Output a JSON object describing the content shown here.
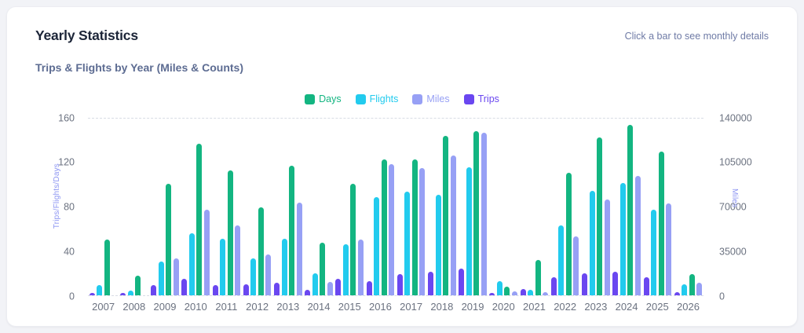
{
  "header": {
    "title": "Yearly Statistics",
    "hint": "Click a bar to see monthly details"
  },
  "chart_data": {
    "type": "bar",
    "title": "Trips & Flights by Year (Miles & Counts)",
    "categories": [
      "2007",
      "2008",
      "2009",
      "2010",
      "2011",
      "2012",
      "2013",
      "2014",
      "2015",
      "2016",
      "2017",
      "2018",
      "2019",
      "2020",
      "2021",
      "2022",
      "2023",
      "2024",
      "2025",
      "2026"
    ],
    "series": [
      {
        "name": "Days",
        "axis": "left",
        "color": "#13b581",
        "values": [
          50,
          18,
          100,
          136,
          112,
          79,
          116,
          47,
          100,
          122,
          122,
          143,
          147,
          8,
          32,
          110,
          142,
          153,
          129,
          19
        ]
      },
      {
        "name": "Flights",
        "axis": "left",
        "color": "#22cbee",
        "values": [
          9,
          4,
          30,
          56,
          51,
          33,
          51,
          20,
          46,
          88,
          93,
          90,
          115,
          13,
          5,
          63,
          94,
          101,
          77,
          10
        ]
      },
      {
        "name": "Miles",
        "axis": "right",
        "color": "#97a0f5",
        "values": [
          0,
          0,
          29000,
          67000,
          55000,
          32000,
          73000,
          10500,
          44000,
          103000,
          100000,
          110000,
          128000,
          3000,
          2500,
          46000,
          75000,
          94000,
          72000,
          10000
        ]
      },
      {
        "name": "Trips",
        "axis": "left",
        "color": "#6a47f0",
        "values": [
          2,
          2,
          9,
          15,
          9,
          10,
          11,
          5,
          15,
          13,
          19,
          21,
          24,
          2,
          6,
          16,
          20,
          21,
          16,
          3
        ]
      }
    ],
    "bar_order": [
      "Trips",
      "Flights",
      "Days",
      "Miles"
    ],
    "legend": [
      "Days",
      "Flights",
      "Miles",
      "Trips"
    ],
    "legend_position": "top",
    "left_axis": {
      "label": "Trips/Flights/Days",
      "min": 0,
      "max": 160,
      "ticks": [
        0,
        40,
        80,
        120,
        160
      ]
    },
    "right_axis": {
      "label": "Miles",
      "min": 0,
      "max": 140000,
      "ticks": [
        0,
        35000,
        70000,
        105000,
        140000
      ]
    },
    "grid": "dashed line at top (160 / 140000) and baseline (0) only"
  }
}
